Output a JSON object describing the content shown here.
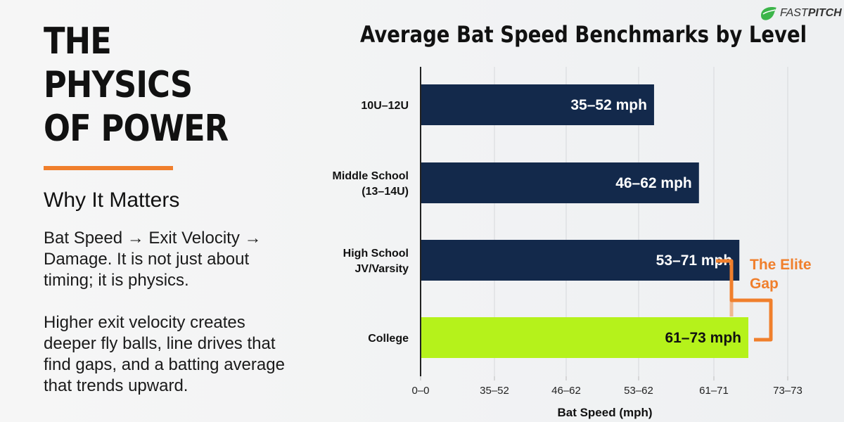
{
  "logo": {
    "text_light": "FAST",
    "text_bold": "PITCH"
  },
  "left": {
    "headline_line1": "THE PHYSICS",
    "headline_line2": "OF POWER",
    "subheading": "Why It Matters",
    "para1": "Bat Speed → Exit Velocity → Damage. It is not just about timing; it is physics.",
    "para2": "Higher exit velocity creates deeper fly balls, line drives that find gaps, and a batting average that trends upward."
  },
  "chart_data": {
    "type": "bar",
    "orientation": "horizontal",
    "title": "Average Bat Speed Benchmarks by Level",
    "xlabel": "Bat Speed (mph)",
    "ylabel": "",
    "categories": [
      "10U–12U",
      "Middle School (13–14U)",
      "High School JV/Varsity",
      "College"
    ],
    "ranges": [
      [
        35,
        52
      ],
      [
        46,
        62
      ],
      [
        53,
        71
      ],
      [
        61,
        73
      ]
    ],
    "data_labels": [
      "35–52 mph",
      "46–62 mph",
      "53–71 mph",
      "61–73 mph"
    ],
    "x_tick_labels": [
      "0–0",
      "35–52",
      "46–62",
      "53–62",
      "61–71",
      "73–73"
    ],
    "grid": "vertical",
    "colors": {
      "default": "#13294b",
      "highlight": "#b5f21b",
      "annotation": "#f07f2c"
    },
    "highlight_category": "College",
    "annotation": "The Elite Gap"
  }
}
